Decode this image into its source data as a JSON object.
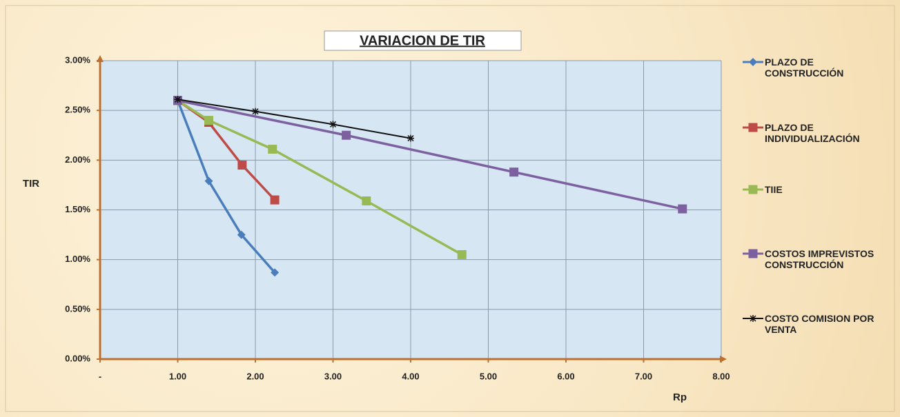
{
  "chart_data": {
    "type": "line",
    "title": "VARIACION DE TIR",
    "x_label": "Rp",
    "y_label": "TIR",
    "xlim": [
      0,
      8
    ],
    "ylim": [
      0,
      3
    ],
    "xticks": [
      {
        "value": 0,
        "label": "-"
      },
      {
        "value": 1,
        "label": "1.00"
      },
      {
        "value": 2,
        "label": "2.00"
      },
      {
        "value": 3,
        "label": "3.00"
      },
      {
        "value": 4,
        "label": "4.00"
      },
      {
        "value": 5,
        "label": "5.00"
      },
      {
        "value": 6,
        "label": "6.00"
      },
      {
        "value": 7,
        "label": "7.00"
      },
      {
        "value": 8,
        "label": "8.00"
      }
    ],
    "yticks": [
      {
        "value": 0,
        "label": "0.00%"
      },
      {
        "value": 0.5,
        "label": "0.50%"
      },
      {
        "value": 1,
        "label": "1.00%"
      },
      {
        "value": 1.5,
        "label": "1.50%"
      },
      {
        "value": 2,
        "label": "2.00%"
      },
      {
        "value": 2.5,
        "label": "2.50%"
      },
      {
        "value": 3,
        "label": "3.00%"
      }
    ],
    "grid": true,
    "legend": "right",
    "series": [
      {
        "name": "PLAZO DE CONSTRUCCIÓN",
        "color": "#4a7ebb",
        "marker": "diamond",
        "x": [
          1.0,
          1.4,
          1.82,
          2.25
        ],
        "values": [
          2.6,
          1.79,
          1.25,
          0.87
        ]
      },
      {
        "name": "PLAZO DE INDIVIDUALIZACIÓN",
        "color": "#be4b48",
        "marker": "square",
        "x": [
          1.0,
          1.4,
          1.83,
          2.25
        ],
        "values": [
          2.6,
          2.38,
          1.95,
          1.6
        ]
      },
      {
        "name": "TIIE",
        "color": "#98b954",
        "marker": "square",
        "x": [
          1.0,
          1.4,
          2.22,
          3.43,
          4.66
        ],
        "values": [
          2.6,
          2.4,
          2.11,
          1.59,
          1.05
        ]
      },
      {
        "name": "COSTOS IMPREVISTOS CONSTRUCCIÓN",
        "color": "#7d60a0",
        "marker": "square",
        "x": [
          1.0,
          3.17,
          5.33,
          7.5
        ],
        "values": [
          2.6,
          2.25,
          1.88,
          1.51
        ]
      },
      {
        "name": "COSTO COMISION POR VENTA",
        "color": "#111111",
        "marker": "star",
        "x": [
          1.0,
          2.0,
          3.0,
          4.0
        ],
        "values": [
          2.61,
          2.49,
          2.36,
          2.22
        ]
      }
    ]
  }
}
